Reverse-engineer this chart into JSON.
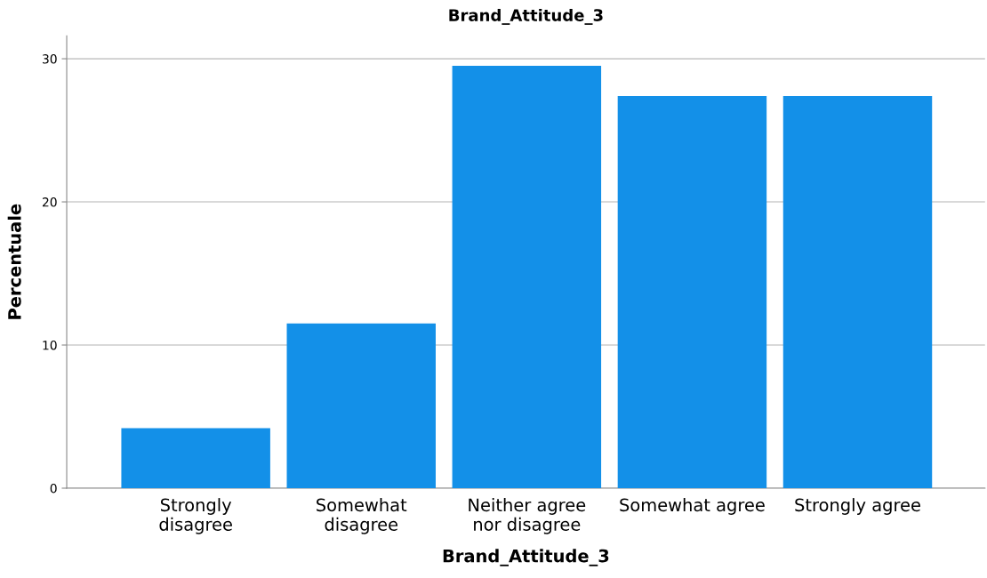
{
  "chart_data": {
    "type": "bar",
    "title": "Brand_Attitude_3",
    "xlabel": "Brand_Attitude_3",
    "ylabel": "Percentuale",
    "categories": [
      "Strongly\ndisagree",
      "Somewhat\ndisagree",
      "Neither agree\nnor disagree",
      "Somewhat agree",
      "Strongly agree"
    ],
    "values": [
      4.2,
      11.5,
      29.5,
      27.4,
      27.4
    ],
    "color": "#1390e8",
    "ylim": [
      0,
      31.6
    ],
    "yticks": [
      0,
      10,
      20,
      30
    ],
    "grid": "y",
    "legend": false
  }
}
